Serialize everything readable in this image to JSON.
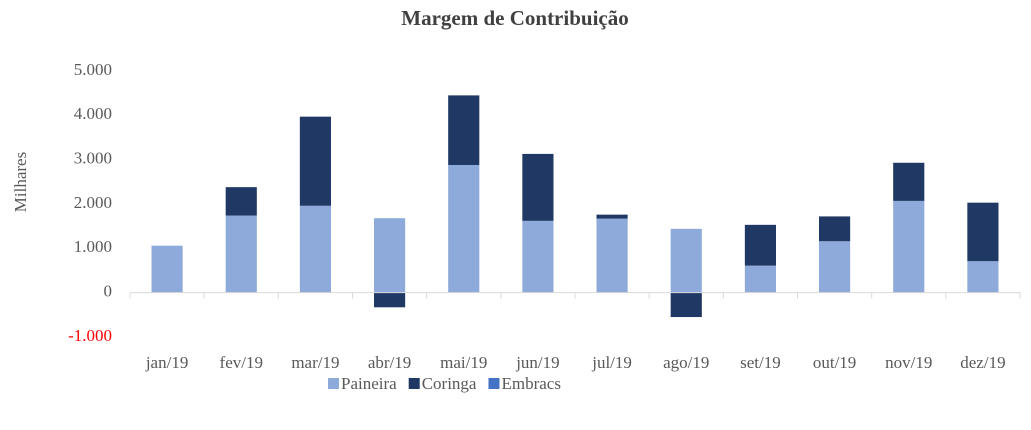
{
  "chart_data": {
    "type": "bar",
    "stacked": true,
    "title": "Margem de Contribuição",
    "y_label": "Milhares",
    "categories": [
      "jan/19",
      "fev/19",
      "mar/19",
      "abr/19",
      "mai/19",
      "jun/19",
      "jul/19",
      "ago/19",
      "set/19",
      "out/19",
      "nov/19",
      "dez/19"
    ],
    "series": [
      {
        "name": "Paineira",
        "color": "#8eaadb",
        "values": [
          1060,
          1740,
          1960,
          1680,
          2880,
          1620,
          1670,
          1440,
          610,
          1160,
          2070,
          710
        ]
      },
      {
        "name": "Coringa",
        "color": "#1f3864",
        "values": [
          0,
          640,
          2010,
          -330,
          1570,
          1510,
          90,
          -550,
          920,
          560,
          860,
          1320
        ]
      },
      {
        "name": "Embracs",
        "color": "#4472c4",
        "values": [
          0,
          0,
          0,
          0,
          0,
          0,
          0,
          0,
          0,
          0,
          0,
          0
        ]
      }
    ],
    "ylim": [
      -1000,
      5000
    ],
    "yticks": [
      {
        "value": -1000,
        "label": "-1.000"
      },
      0,
      {
        "value": 1000,
        "label": "1.000"
      },
      {
        "value": 2000,
        "label": "2.000"
      },
      {
        "value": 3000,
        "label": "3.000"
      },
      {
        "value": 4000,
        "label": "4.000"
      },
      {
        "value": 5000,
        "label": "5.000"
      }
    ],
    "negative_tick_color": "#ff0000",
    "grid": false,
    "legend": "bottom"
  }
}
